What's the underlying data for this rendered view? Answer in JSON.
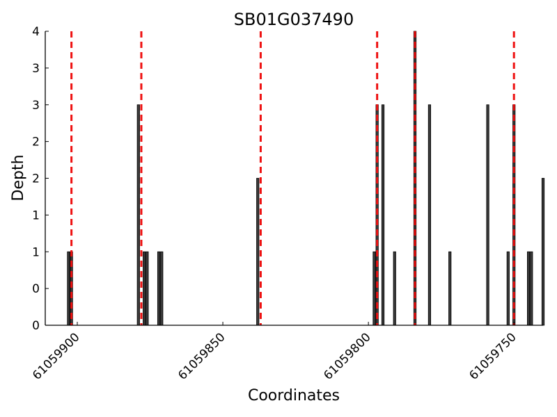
{
  "chart_data": {
    "type": "bar",
    "title": "SB01G037490",
    "xlabel": "Coordinates",
    "ylabel": "Depth",
    "x_reversed": true,
    "xlim": [
      61059911,
      61059740
    ],
    "ylim": [
      0,
      4
    ],
    "x_ticks": [
      61059900,
      61059850,
      61059800,
      61059750
    ],
    "y_tick_values": [
      0,
      0.5,
      1,
      1.5,
      2,
      2.5,
      3,
      3.5,
      4
    ],
    "y_tick_labels": [
      "0",
      "0",
      "1",
      "1",
      "2",
      "2",
      "3",
      "3",
      "4"
    ],
    "bar_color": "#3a3a3a",
    "marker_color": "#ee1111",
    "grid": false,
    "bars": [
      {
        "x": 61059903,
        "y": 1
      },
      {
        "x": 61059902,
        "y": 1
      },
      {
        "x": 61059879,
        "y": 3
      },
      {
        "x": 61059877,
        "y": 1
      },
      {
        "x": 61059876,
        "y": 1
      },
      {
        "x": 61059872,
        "y": 1
      },
      {
        "x": 61059871,
        "y": 1
      },
      {
        "x": 61059838,
        "y": 2
      },
      {
        "x": 61059798,
        "y": 1
      },
      {
        "x": 61059797,
        "y": 3
      },
      {
        "x": 61059795,
        "y": 3
      },
      {
        "x": 61059791,
        "y": 1
      },
      {
        "x": 61059784,
        "y": 4
      },
      {
        "x": 61059779,
        "y": 3
      },
      {
        "x": 61059772,
        "y": 1
      },
      {
        "x": 61059759,
        "y": 3
      },
      {
        "x": 61059752,
        "y": 1
      },
      {
        "x": 61059750,
        "y": 3
      },
      {
        "x": 61059745,
        "y": 1
      },
      {
        "x": 61059744,
        "y": 1
      },
      {
        "x": 61059740,
        "y": 2
      }
    ],
    "markers": [
      61059902,
      61059878,
      61059837,
      61059797,
      61059784,
      61059750
    ]
  }
}
